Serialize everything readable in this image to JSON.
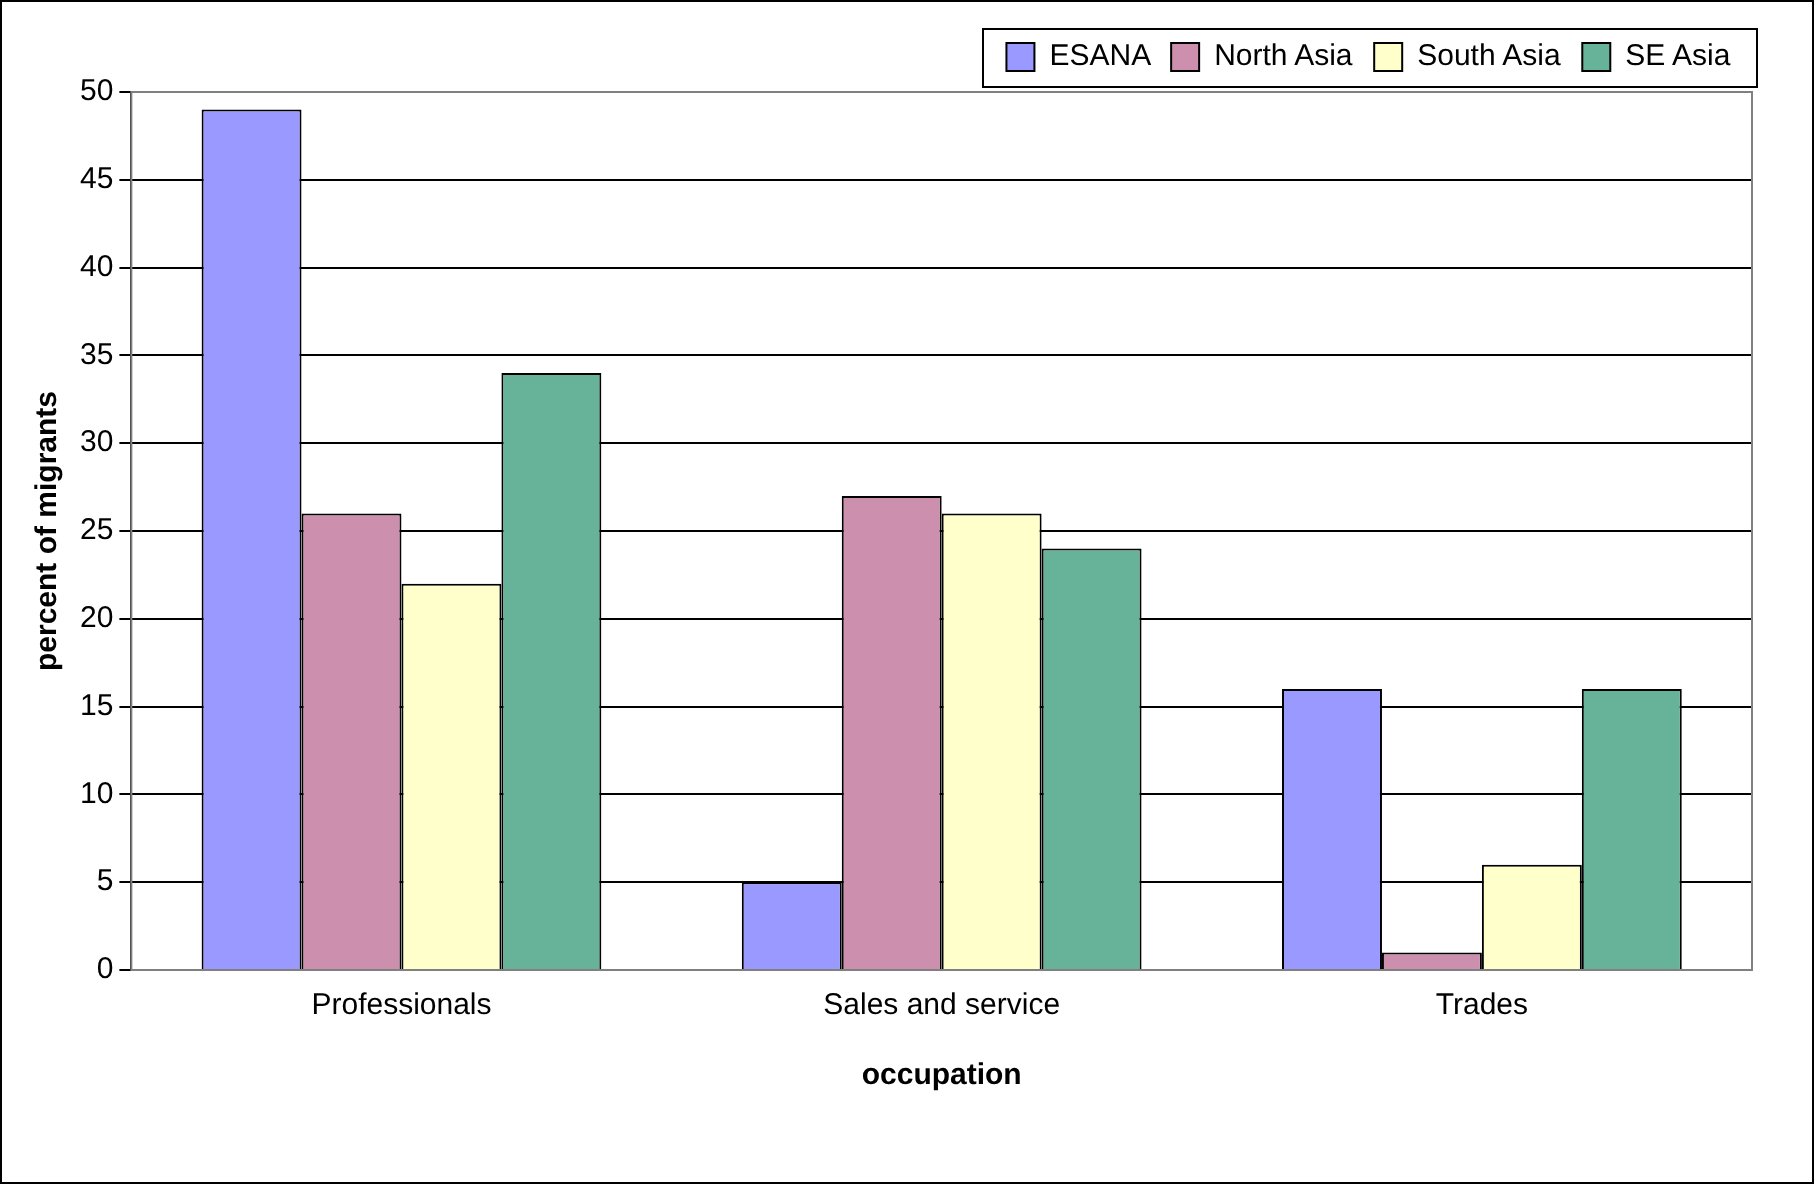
{
  "chart_data": {
    "type": "bar",
    "xlabel": "occupation",
    "ylabel": "percent of migrants",
    "categories": [
      "Professionals",
      "Sales and service",
      "Trades"
    ],
    "series": [
      {
        "name": "ESANA",
        "color": "#9999ff",
        "values": [
          49,
          5,
          16
        ]
      },
      {
        "name": "North Asia",
        "color": "#cc8fae",
        "values": [
          26,
          27,
          1
        ]
      },
      {
        "name": "South Asia",
        "color": "#ffffcc",
        "values": [
          22,
          26,
          6
        ]
      },
      {
        "name": "SE Asia",
        "color": "#66b399",
        "values": [
          34,
          24,
          16
        ]
      }
    ],
    "ylim": [
      0,
      50
    ],
    "yticks": [
      0,
      5,
      10,
      15,
      20,
      25,
      30,
      35,
      40,
      45,
      50
    ],
    "grid": "y",
    "legend": "top right"
  }
}
